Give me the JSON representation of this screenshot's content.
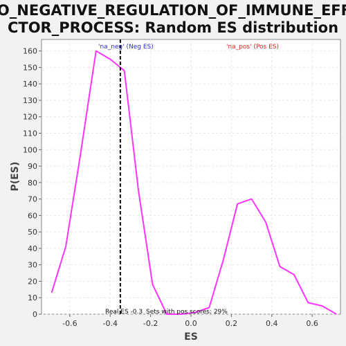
{
  "chart_data": {
    "type": "line",
    "title_lines": [
      "GO_NEGATIVE_REGULATION_OF_IMMUNE_EFFE",
      "CTOR_PROCESS: Random ES distribution"
    ],
    "xlabel": "ES",
    "ylabel": "P(ES)",
    "xlim": [
      -0.74,
      0.74
    ],
    "ylim": [
      0,
      167
    ],
    "xticks": [
      -0.6,
      -0.4,
      -0.2,
      0.0,
      0.2,
      0.4,
      0.6
    ],
    "xtick_labels": [
      "-0.6",
      "-0.4",
      "-0.2",
      "0.0",
      "0.2",
      "0.4",
      "0.6"
    ],
    "yticks": [
      0,
      10,
      20,
      30,
      40,
      50,
      60,
      70,
      80,
      90,
      100,
      110,
      120,
      130,
      140,
      150,
      160
    ],
    "grid": true,
    "series": [
      {
        "color": "#ff33ff",
        "x": [
          -0.69,
          -0.62,
          -0.55,
          -0.47,
          -0.4,
          -0.33,
          -0.26,
          -0.19,
          -0.12,
          -0.05,
          0.02,
          0.09,
          0.16,
          0.23,
          0.3,
          0.37,
          0.44,
          0.51,
          0.58,
          0.65,
          0.72
        ],
        "y": [
          13,
          41,
          95,
          160,
          155,
          148,
          75,
          18,
          0,
          0,
          1,
          4,
          33,
          67,
          70,
          56,
          29,
          24,
          7,
          5,
          0
        ]
      }
    ],
    "vline": {
      "x": -0.35,
      "color": "#000000"
    },
    "legend": [
      {
        "text": "'na_neg' (Neg ES)",
        "color": "#2a2ad8"
      },
      {
        "text": "'na_pos' (Pos ES)",
        "color": "#e02020"
      }
    ],
    "annotations": [
      {
        "text": "Real ES -0.3"
      },
      {
        "text": "Sets with pos scores: 29%"
      }
    ]
  }
}
